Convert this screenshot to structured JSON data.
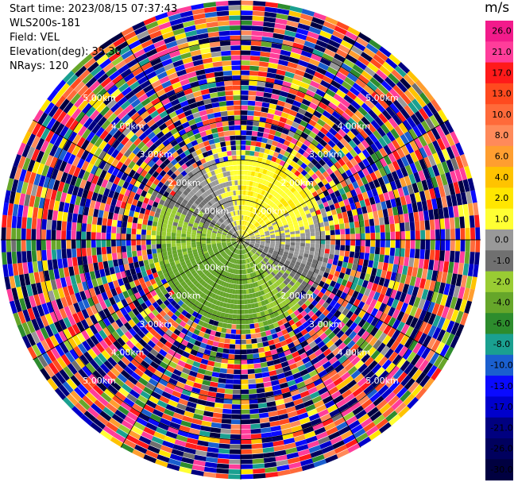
{
  "info": {
    "start_time": "Start time: 2023/08/15 07:37:43",
    "device": "WLS200s-181",
    "field": "Field: VEL",
    "elevation": "Elevation(deg): 35.30",
    "nrays": "NRays: 120"
  },
  "colorbar": {
    "unit": "m/s",
    "labels": [
      "26.0",
      "21.0",
      "17.0",
      "13.0",
      "10.0",
      "8.0",
      "6.0",
      "4.0",
      "2.0",
      "1.0",
      "0.0",
      "-1.0",
      "-2.0",
      "-4.0",
      "-6.0",
      "-8.0",
      "-10.0",
      "-13.0",
      "-17.0",
      "-21.0",
      "-26.0",
      "-30.0"
    ],
    "colors": [
      "#f21b8b",
      "#ff3d9a",
      "#ff1a1a",
      "#ff4a1f",
      "#ff6a3a",
      "#ff8a5a",
      "#ff9e30",
      "#ffc300",
      "#ffe600",
      "#ffff33",
      "#999999",
      "#707070",
      "#99cc33",
      "#66a62a",
      "#2d8c2d",
      "#1aa090",
      "#1a5fcf",
      "#0a0aff",
      "#0000cc",
      "#000080",
      "#00005e",
      "#000040"
    ]
  },
  "chart_data": {
    "type": "heatmap",
    "projection": "polar (PPI scan)",
    "field": "VEL",
    "unit": "m/s",
    "nrays": 120,
    "range_ring_labels": [
      "1.00km",
      "2.00km",
      "3.00km",
      "4.00km",
      "5.00km"
    ],
    "rings_km": [
      1,
      2,
      3,
      4,
      5
    ],
    "max_range_km": 6,
    "color_levels": [
      26.0,
      21.0,
      17.0,
      13.0,
      10.0,
      8.0,
      6.0,
      4.0,
      2.0,
      1.0,
      0.0,
      -1.0,
      -2.0,
      -4.0,
      -6.0,
      -8.0,
      -10.0,
      -13.0,
      -17.0,
      -21.0,
      -26.0,
      -30.0
    ],
    "pattern": "Near-field (< ~2.5 km): velocities mostly between -4 and +2 m/s (yellow north/east, grey center, green south/west); beyond ~2.5 km the field is noise spanning the full color range."
  }
}
